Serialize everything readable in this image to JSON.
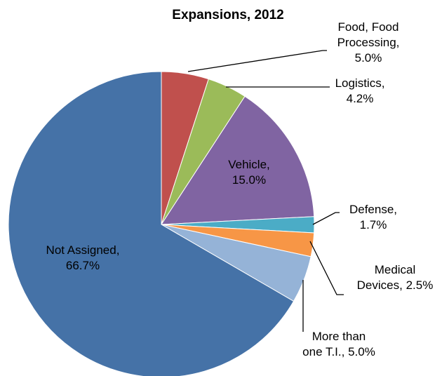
{
  "chart_data": {
    "type": "pie",
    "title": "Expansions, 2012",
    "slices": [
      {
        "label_lines": [
          "Food, Food",
          "Processing,",
          "5.0%"
        ],
        "value": 5.0,
        "color": "#C0504D"
      },
      {
        "label_lines": [
          "Logistics,",
          "4.2%"
        ],
        "value": 4.2,
        "color": "#9BBB59"
      },
      {
        "label_lines": [
          "Vehicle,",
          "15.0%"
        ],
        "value": 15.0,
        "color": "#8064A2"
      },
      {
        "label_lines": [
          "Defense,",
          "1.7%"
        ],
        "value": 1.7,
        "color": "#4BACC6"
      },
      {
        "label_lines": [
          "Medical",
          "Devices, 2.5%"
        ],
        "value": 2.5,
        "color": "#F79646"
      },
      {
        "label_lines": [
          "More than",
          "one T.I., 5.0%"
        ],
        "value": 5.0,
        "color": "#95B3D7"
      },
      {
        "label_lines": [
          "Not Assigned,",
          "66.7%"
        ],
        "value": 66.7,
        "color": "#4572A7"
      }
    ],
    "legend": "none"
  }
}
